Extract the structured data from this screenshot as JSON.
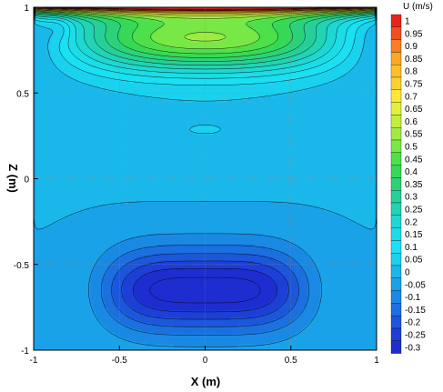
{
  "chart_data": {
    "type": "heatmap",
    "title": "",
    "xlabel": "X (m)",
    "ylabel": "Z (m)",
    "xlim": [
      -1,
      1
    ],
    "ylim": [
      -1,
      1
    ],
    "x_ticks": [
      "-1",
      "-0.5",
      "0",
      "0.5",
      "1"
    ],
    "y_ticks": [
      "-1",
      "-0.5",
      "0",
      "0.5",
      "1"
    ],
    "x_tick_values": [
      -1,
      -0.5,
      0,
      0.5,
      1
    ],
    "y_tick_values": [
      -1,
      -0.5,
      0,
      0.5,
      1
    ],
    "grid": true,
    "legend": {
      "title": "U (m/s)",
      "placement": "right",
      "levels": [
        "1",
        "0.95",
        "0.9",
        "0.85",
        "0.8",
        "0.75",
        "0.7",
        "0.65",
        "0.6",
        "0.55",
        "0.5",
        "0.45",
        "0.4",
        "0.35",
        "0.3",
        "0.25",
        "0.2",
        "0.15",
        "0.1",
        "0.05",
        "0",
        "-0.05",
        "-0.1",
        "-0.15",
        "-0.2",
        "-0.25",
        "-0.3"
      ],
      "level_values": [
        1,
        0.95,
        0.9,
        0.85,
        0.8,
        0.75,
        0.7,
        0.65,
        0.6,
        0.55,
        0.5,
        0.45,
        0.4,
        0.35,
        0.3,
        0.25,
        0.2,
        0.15,
        0.1,
        0.05,
        0,
        -0.05,
        -0.1,
        -0.15,
        -0.2,
        -0.25,
        -0.3
      ],
      "colors": [
        "#e8231d",
        "#f04e1e",
        "#f57f22",
        "#f9a826",
        "#fbc02b",
        "#fcd12f",
        "#fbe836",
        "#e3f03a",
        "#c2ee3c",
        "#9fec41",
        "#77e845",
        "#4de04a",
        "#35d956",
        "#2cd27a",
        "#27cf98",
        "#22d3b6",
        "#1fd7d2",
        "#1cdde7",
        "#19e0f2",
        "#1ad1ee",
        "#1ab8ea",
        "#1aa2e8",
        "#1a89e4",
        "#1b6fdf",
        "#1c56db",
        "#1d3fd6",
        "#1d2dcf"
      ]
    },
    "field": {
      "description_values": {
        "lid_velocity": 1.0,
        "min_velocity": -0.3,
        "min_location": [
          0.0,
          -0.65
        ],
        "upper_vortex_max": 0.55,
        "upper_vortex_location": [
          0.0,
          0.8
        ]
      }
    }
  }
}
